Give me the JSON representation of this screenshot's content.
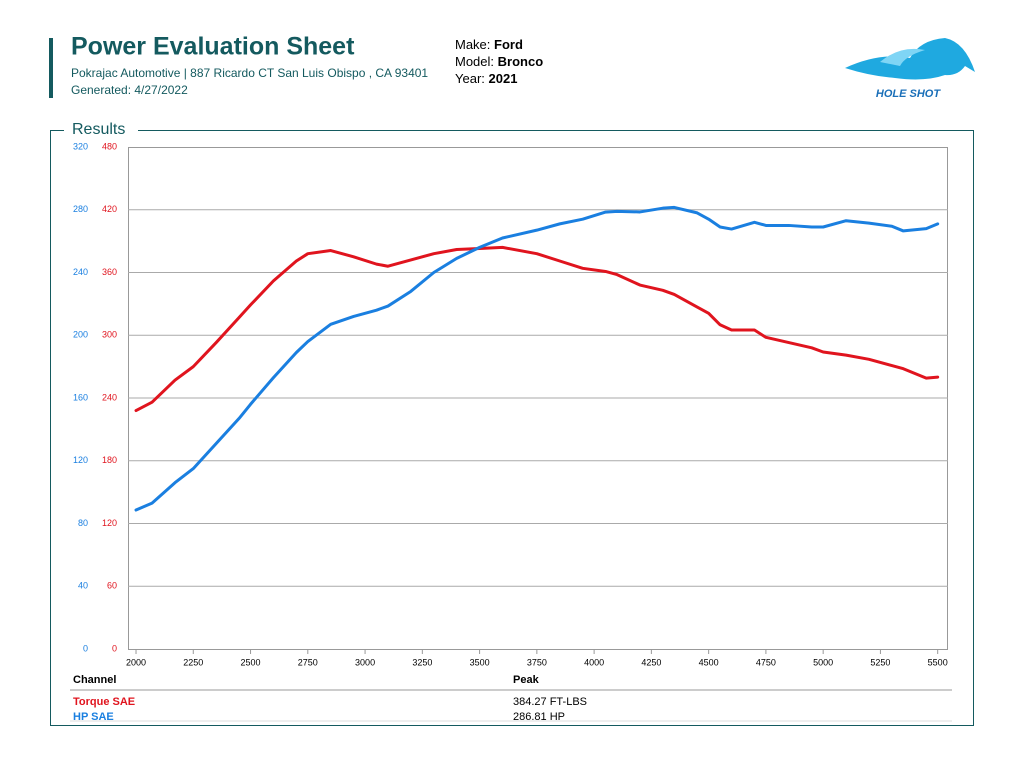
{
  "header": {
    "title": "Power Evaluation Sheet",
    "address": "Pokrajac Automotive | 887 Ricardo CT San Luis Obispo , CA 93401",
    "generated": "Generated: 4/27/2022"
  },
  "vehicle": {
    "make_label": "Make:",
    "make": "Ford",
    "model_label": "Model:",
    "model": "Bronco",
    "year_label": "Year:",
    "year": "2021"
  },
  "logo": {
    "text": "HOLE SHOT"
  },
  "section": {
    "title": "Results"
  },
  "chart_data": {
    "type": "line",
    "x": [
      2000,
      2070,
      2170,
      2250,
      2350,
      2450,
      2500,
      2600,
      2700,
      2750,
      2850,
      2950,
      3050,
      3100,
      3200,
      3300,
      3400,
      3500,
      3600,
      3750,
      3850,
      3950,
      4050,
      4100,
      4200,
      4300,
      4350,
      4450,
      4500,
      4550,
      4600,
      4700,
      4750,
      4850,
      4950,
      5000,
      5100,
      5200,
      5300,
      5350,
      5450,
      5500
    ],
    "series": [
      {
        "name": "Torque SAE",
        "color": "#e0141e",
        "axis": "y2",
        "values": [
          228,
          236,
          257,
          270,
          293,
          317,
          329,
          352,
          371,
          378,
          381,
          375,
          368,
          366,
          372,
          378,
          382,
          383,
          384,
          378,
          371,
          364,
          361,
          358,
          348,
          343,
          339,
          327,
          321,
          310,
          305,
          305,
          298,
          293,
          288,
          284,
          281,
          277,
          271,
          268,
          259,
          260
        ]
      },
      {
        "name": "HP SAE",
        "color": "#1a7fe0",
        "values": [
          88.6,
          93,
          106,
          115,
          131,
          147,
          156,
          173,
          189,
          196,
          207,
          212,
          216,
          218.6,
          228,
          240,
          249,
          256,
          262,
          267,
          271,
          274,
          278.5,
          279,
          278.6,
          281,
          281.5,
          278,
          274,
          269,
          267.7,
          272,
          270,
          270,
          269,
          269,
          273,
          271.5,
          269.5,
          266.5,
          268,
          271
        ]
      }
    ],
    "xlim": [
      1965,
      5545
    ],
    "xticks": [
      2000,
      2250,
      2500,
      2750,
      3000,
      3250,
      3500,
      3750,
      4000,
      4250,
      4500,
      4750,
      5000,
      5250,
      5500
    ],
    "ylim": [
      0,
      320
    ],
    "yticks": [
      0,
      40,
      80,
      120,
      160,
      200,
      240,
      280,
      320
    ],
    "y2lim": [
      0,
      480
    ],
    "y2ticks": [
      0,
      60,
      120,
      180,
      240,
      300,
      360,
      420,
      480
    ],
    "grid": true
  },
  "table": {
    "columns": [
      "Channel",
      "Peak"
    ],
    "rows": [
      [
        "Torque SAE",
        "384.27 FT-LBS"
      ],
      [
        "HP SAE",
        "286.81 HP"
      ]
    ]
  }
}
